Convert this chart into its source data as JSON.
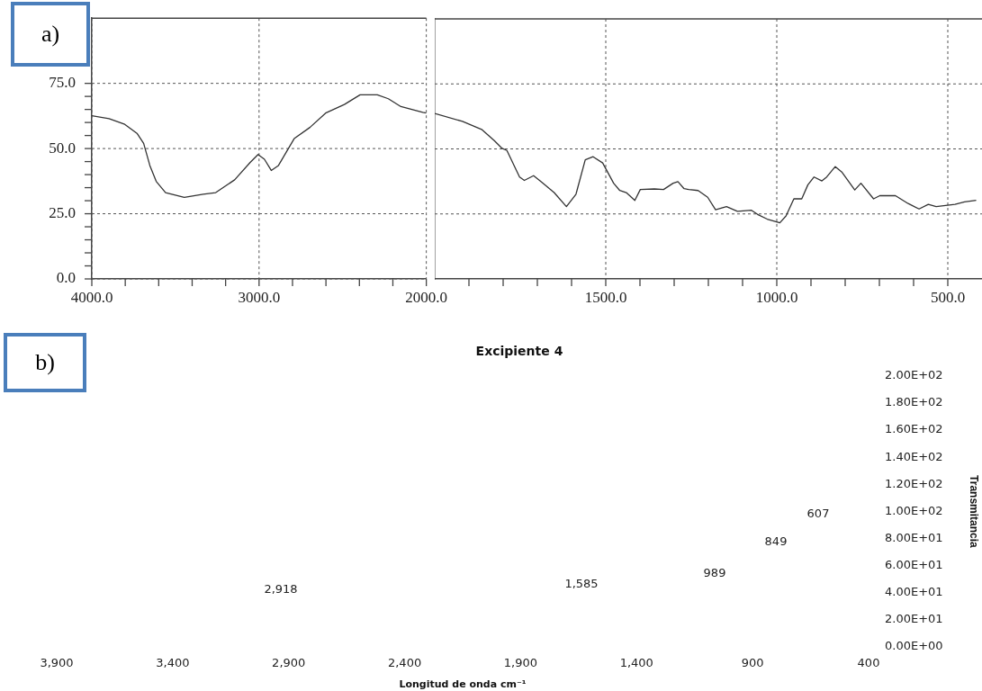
{
  "chart_data": [
    {
      "type": "line",
      "annotations": [
        "a)"
      ],
      "xlim": [
        4000,
        2000
      ],
      "xticks": [
        {
          "value": 4000,
          "label": "4000.0"
        },
        {
          "value": 3800,
          "label": null
        },
        {
          "value": 3600,
          "label": null
        },
        {
          "value": 3400,
          "label": null
        },
        {
          "value": 3200,
          "label": null
        },
        {
          "value": 3000,
          "label": "3000.0"
        },
        {
          "value": 2800,
          "label": null
        },
        {
          "value": 2600,
          "label": null
        },
        {
          "value": 2400,
          "label": null
        },
        {
          "value": 2200,
          "label": null
        },
        {
          "value": 2000,
          "label": "2000.0"
        }
      ],
      "ylim": [
        0,
        100
      ],
      "yticks": [
        {
          "value": 0,
          "label": "0.0"
        },
        {
          "value": 5,
          "label": null
        },
        {
          "value": 10,
          "label": null
        },
        {
          "value": 15,
          "label": null
        },
        {
          "value": 20,
          "label": null
        },
        {
          "value": 25,
          "label": "25.0"
        },
        {
          "value": 30,
          "label": null
        },
        {
          "value": 35,
          "label": null
        },
        {
          "value": 40,
          "label": null
        },
        {
          "value": 45,
          "label": null
        },
        {
          "value": 50,
          "label": "50.0"
        },
        {
          "value": 55,
          "label": null
        },
        {
          "value": 60,
          "label": null
        },
        {
          "value": 65,
          "label": null
        },
        {
          "value": 70,
          "label": null
        },
        {
          "value": 75,
          "label": "75.0"
        }
      ],
      "grid": true,
      "x": [
        4000,
        3897,
        3803,
        3728,
        3690,
        3653,
        3615,
        3559,
        3447,
        3334,
        3259,
        3146,
        3053,
        3006,
        2968,
        2927,
        2884,
        2790,
        2696,
        2602,
        2490,
        2396,
        2293,
        2227,
        2152,
        2021,
        2000
      ],
      "series": [
        {
          "color": "#333333",
          "values": [
            62.6,
            61.5,
            59.3,
            55.7,
            52.0,
            43.5,
            37.4,
            33.1,
            31.3,
            32.5,
            33.1,
            38.0,
            44.7,
            47.7,
            45.9,
            41.6,
            43.5,
            53.8,
            58.1,
            63.6,
            66.9,
            70.6,
            70.6,
            69.1,
            66.1,
            63.9,
            63.6
          ]
        }
      ]
    },
    {
      "type": "line",
      "tick_labels": "x",
      "xlim": [
        2000,
        400
      ],
      "xticks": [
        {
          "value": 1900,
          "label": null
        },
        {
          "value": 1800,
          "label": null
        },
        {
          "value": 1700,
          "label": null
        },
        {
          "value": 1600,
          "label": null
        },
        {
          "value": 1500,
          "label": "1500.0"
        },
        {
          "value": 1400,
          "label": null
        },
        {
          "value": 1300,
          "label": null
        },
        {
          "value": 1200,
          "label": null
        },
        {
          "value": 1100,
          "label": null
        },
        {
          "value": 1000,
          "label": "1000.0"
        },
        {
          "value": 900,
          "label": null
        },
        {
          "value": 800,
          "label": null
        },
        {
          "value": 700,
          "label": null
        },
        {
          "value": 600,
          "label": null
        },
        {
          "value": 500,
          "label": "500.0"
        }
      ],
      "ylim": [
        0,
        100
      ],
      "yticks": [
        25,
        50,
        75
      ],
      "grid": true,
      "x": [
        2000,
        1919,
        1863,
        1826,
        1803,
        1789,
        1752,
        1738,
        1711,
        1688,
        1651,
        1615,
        1587,
        1560,
        1537,
        1509,
        1477,
        1459,
        1440,
        1415,
        1399,
        1358,
        1331,
        1303,
        1289,
        1271,
        1257,
        1230,
        1202,
        1179,
        1147,
        1115,
        1074,
        1056,
        1028,
        991,
        973,
        950,
        927,
        909,
        891,
        868,
        854,
        829,
        809,
        772,
        754,
        717,
        699,
        653,
        616,
        584,
        557,
        534,
        479,
        451,
        417
      ],
      "series": [
        {
          "color": "#333333",
          "values": [
            63.6,
            60.6,
            57.5,
            53.2,
            50.2,
            49.4,
            39.2,
            37.9,
            39.7,
            37.3,
            33.2,
            27.8,
            32.6,
            45.8,
            47.0,
            44.6,
            36.8,
            34.0,
            33.2,
            30.2,
            34.4,
            34.6,
            34.4,
            36.8,
            37.4,
            34.7,
            34.4,
            34.0,
            31.4,
            26.6,
            27.8,
            26.0,
            26.4,
            24.8,
            23.0,
            21.6,
            24.2,
            30.8,
            30.8,
            36.2,
            39.2,
            37.7,
            39.2,
            43.2,
            41.0,
            34.2,
            36.8,
            30.8,
            32.0,
            32.0,
            29.0,
            26.9,
            28.7,
            27.8,
            28.7,
            29.6,
            30.2
          ]
        }
      ]
    },
    {
      "type": "line",
      "title": "Excipiente 4",
      "xlabel": "Longitud de onda cm⁻¹",
      "ylabel": "Transmitancia",
      "annotations": [
        "b)",
        "2,918",
        "1,585",
        "989",
        "849",
        "607"
      ],
      "xlim": [
        3900,
        400
      ],
      "xticks": [
        {
          "value": 3900,
          "label": "3,900"
        },
        {
          "value": 3400,
          "label": "3,400"
        },
        {
          "value": 2900,
          "label": "2,900"
        },
        {
          "value": 2400,
          "label": "2,400"
        },
        {
          "value": 1900,
          "label": "1,900"
        },
        {
          "value": 1400,
          "label": "1,400"
        },
        {
          "value": 900,
          "label": "900"
        },
        {
          "value": 400,
          "label": "400"
        }
      ],
      "ylim": [
        0,
        200
      ],
      "yticks": [
        {
          "value": 0,
          "label": "0.00E+00"
        },
        {
          "value": 20,
          "label": "2.00E+01"
        },
        {
          "value": 40,
          "label": "4.00E+01"
        },
        {
          "value": 60,
          "label": "6.00E+01"
        },
        {
          "value": 80,
          "label": "8.00E+01"
        },
        {
          "value": 100,
          "label": "1.00E+02"
        },
        {
          "value": 120,
          "label": "1.20E+02"
        },
        {
          "value": 140,
          "label": "1.40E+02"
        },
        {
          "value": 160,
          "label": "1.60E+02"
        },
        {
          "value": 180,
          "label": "1.80E+02"
        },
        {
          "value": 200,
          "label": "2.00E+02"
        }
      ]
    }
  ]
}
